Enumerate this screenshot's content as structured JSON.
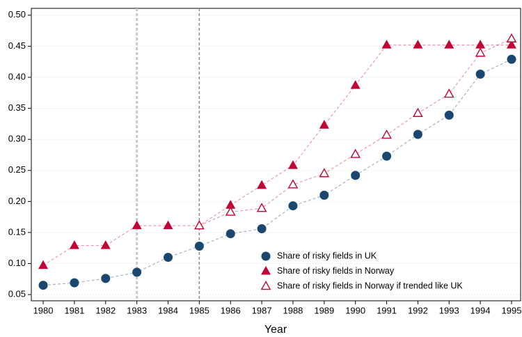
{
  "chart_data": {
    "type": "line",
    "x_label": "Year",
    "x": [
      1980,
      1981,
      1982,
      1983,
      1984,
      1985,
      1986,
      1987,
      1988,
      1989,
      1990,
      1991,
      1992,
      1993,
      1994,
      1995
    ],
    "xlim": [
      1979.62,
      1995.29
    ],
    "xticks": [
      1980,
      1981,
      1982,
      1983,
      1984,
      1985,
      1986,
      1987,
      1988,
      1989,
      1990,
      1991,
      1992,
      1993,
      1994,
      1995
    ],
    "ylim": [
      0.04,
      0.511
    ],
    "yticks": [
      0.05,
      {
        "value": 0.1,
        "label": "0.10"
      },
      0.15,
      {
        "value": 0.2,
        "label": "0.20"
      },
      0.25,
      {
        "value": 0.3,
        "label": "0.30"
      },
      0.35,
      {
        "value": 0.4,
        "label": "0.40"
      },
      0.45,
      {
        "value": 0.5,
        "label": "0.50"
      }
    ],
    "grid": true,
    "vlines": [
      {
        "value": 1983,
        "color": "#c8c8c8"
      },
      {
        "value": 1985,
        "color": "#8a8a8a"
      }
    ],
    "legend": "bottom-right",
    "series": [
      {
        "name": "Share of risky fields in UK",
        "color": "#1a476f",
        "marker": "circle",
        "values": [
          0.065,
          0.069,
          0.076,
          0.086,
          0.11,
          0.128,
          0.148,
          0.156,
          0.193,
          0.21,
          0.242,
          0.273,
          0.308,
          0.339,
          0.405,
          0.429
        ]
      },
      {
        "name": "Share of risky fields in Norway",
        "color": "#c10534",
        "marker": "triangle",
        "values": [
          0.097,
          0.129,
          0.129,
          0.161,
          0.161,
          0.161,
          0.194,
          0.226,
          0.258,
          0.323,
          0.387,
          0.452,
          0.452,
          0.452,
          0.452,
          0.452
        ]
      },
      {
        "name": "Share of risky fields in Norway if trended like UK",
        "color": "#c10534",
        "marker": "triangle-hollow",
        "values": [
          null,
          null,
          null,
          null,
          null,
          0.161,
          0.183,
          0.189,
          0.227,
          0.245,
          0.276,
          0.307,
          0.342,
          0.373,
          0.439,
          0.462
        ]
      }
    ]
  }
}
